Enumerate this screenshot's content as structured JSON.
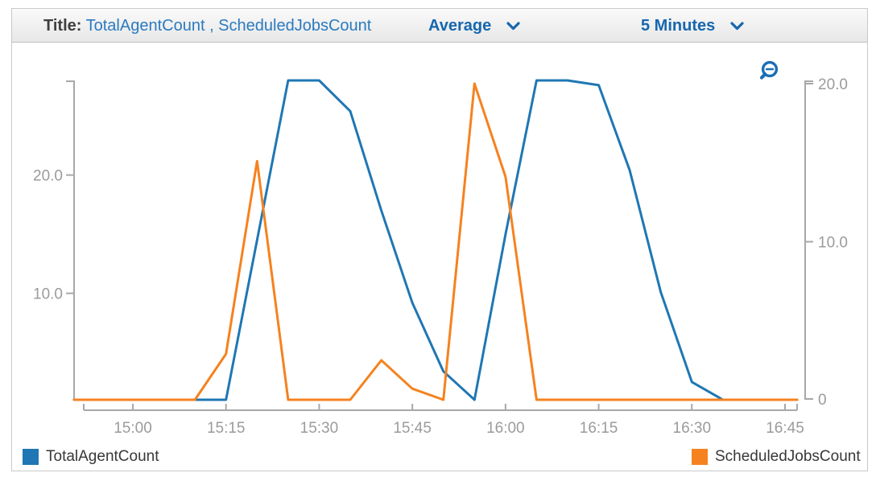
{
  "header": {
    "title_label": "Title:",
    "title_value": "TotalAgentCount , ScheduledJobsCount",
    "statistic": "Average",
    "period": "5 Minutes",
    "accent_color": "#1667ae"
  },
  "icons": {
    "zoom_out": "zoom-out-icon",
    "dropdown": "chevron-down-icon"
  },
  "chart_data": {
    "type": "line",
    "title": "TotalAgentCount , ScheduledJobsCount",
    "xlabel": "",
    "ylabel": "",
    "x_unit": "minutes since 15:00, 5-minute period",
    "grid": false,
    "legend_position": "bottom",
    "x_ticks": [
      {
        "t": 0,
        "label": "15:00"
      },
      {
        "t": 15,
        "label": "15:15"
      },
      {
        "t": 30,
        "label": "15:30"
      },
      {
        "t": 45,
        "label": "15:45"
      },
      {
        "t": 60,
        "label": "16:00"
      },
      {
        "t": 75,
        "label": "16:15"
      },
      {
        "t": 90,
        "label": "16:30"
      },
      {
        "t": 105,
        "label": "16:45"
      }
    ],
    "axes": {
      "left": {
        "range": [
          1,
          28
        ],
        "ticks": [
          {
            "v": 10,
            "label": "10.0"
          },
          {
            "v": 20,
            "label": "20.0"
          }
        ]
      },
      "right": {
        "range": [
          0,
          20.2
        ],
        "ticks": [
          {
            "v": 0,
            "label": "0"
          },
          {
            "v": 10,
            "label": "10.0"
          },
          {
            "v": 20,
            "label": "20.0"
          }
        ]
      }
    },
    "axis_color": "#a8a8a8",
    "label_color": "#9b9b9b",
    "series": [
      {
        "name": "TotalAgentCount",
        "color": "#1f77b4",
        "axis": "left",
        "points": [
          [
            -10,
            1
          ],
          [
            -5,
            1
          ],
          [
            0,
            1
          ],
          [
            5,
            1
          ],
          [
            10,
            1
          ],
          [
            15,
            1
          ],
          [
            20,
            14.5
          ],
          [
            25,
            28
          ],
          [
            30,
            28
          ],
          [
            35,
            25.4
          ],
          [
            40,
            17
          ],
          [
            45,
            9.2
          ],
          [
            50,
            3.4
          ],
          [
            55,
            1
          ],
          [
            60,
            15
          ],
          [
            65,
            28
          ],
          [
            70,
            28
          ],
          [
            75,
            27.6
          ],
          [
            80,
            20.4
          ],
          [
            85,
            10.1
          ],
          [
            90,
            2.5
          ],
          [
            95,
            1
          ],
          [
            100,
            1
          ],
          [
            105,
            1
          ],
          [
            107,
            1
          ]
        ]
      },
      {
        "name": "ScheduledJobsCount",
        "color": "#f5821f",
        "axis": "right",
        "points": [
          [
            -10,
            0
          ],
          [
            -5,
            0
          ],
          [
            0,
            0
          ],
          [
            5,
            0
          ],
          [
            10,
            0
          ],
          [
            15,
            2.9
          ],
          [
            20,
            15.1
          ],
          [
            25,
            0
          ],
          [
            30,
            0
          ],
          [
            35,
            0
          ],
          [
            40,
            2.5
          ],
          [
            45,
            0.7
          ],
          [
            50,
            0
          ],
          [
            55,
            20
          ],
          [
            60,
            14.1
          ],
          [
            65,
            0
          ],
          [
            70,
            0
          ],
          [
            75,
            0
          ],
          [
            80,
            0
          ],
          [
            85,
            0
          ],
          [
            90,
            0
          ],
          [
            95,
            0
          ],
          [
            100,
            0
          ],
          [
            105,
            0
          ],
          [
            107,
            0
          ]
        ]
      }
    ]
  }
}
